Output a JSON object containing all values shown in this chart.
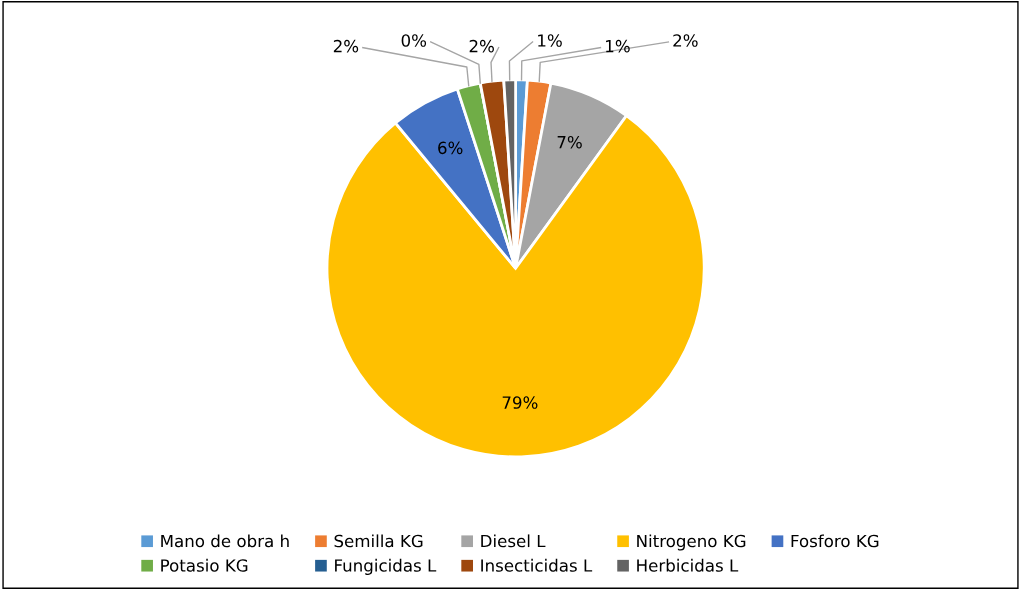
{
  "chart_data": {
    "type": "pie",
    "categories": [
      "Mano de obra h",
      "Semilla KG",
      "Diesel L",
      "Nitrogeno KG",
      "Fosforo KG",
      "Potasio KG",
      "Fungicidas L",
      "Insecticidas L",
      "Herbicidas L"
    ],
    "values": [
      1,
      2,
      7,
      79,
      6,
      2,
      0,
      2,
      1
    ],
    "colors": [
      "#5b9bd5",
      "#ed7d31",
      "#a5a5a5",
      "#ffc000",
      "#4472c4",
      "#70ad47",
      "#255e91",
      "#9e480e",
      "#636363"
    ],
    "value_labels": [
      "1%",
      "2%",
      "7%",
      "79%",
      "6%",
      "2%",
      "0%",
      "2%",
      "1%"
    ],
    "legend": "bottom"
  }
}
